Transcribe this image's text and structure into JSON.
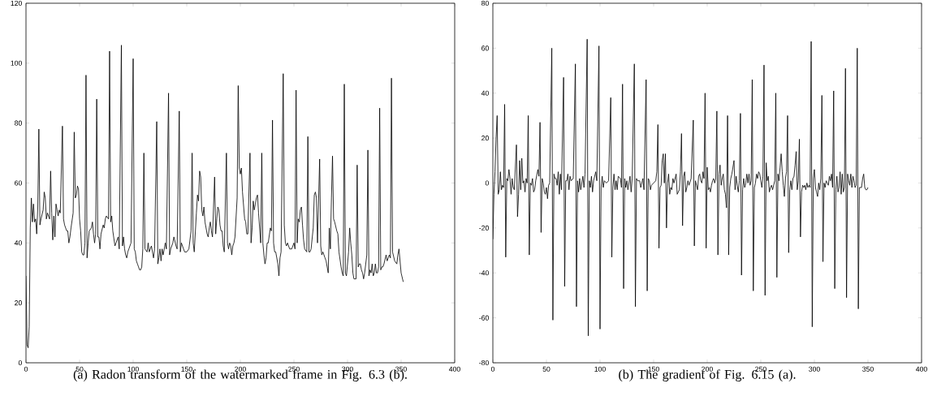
{
  "chart_data": [
    {
      "type": "line",
      "title": "(a) Radon transform of the watermarked frame in Fig. 6.3 (b).",
      "color": "#000000",
      "xlim": [
        0,
        400
      ],
      "ylim": [
        0,
        120
      ],
      "xticks": [
        0,
        50,
        100,
        150,
        200,
        250,
        300,
        350,
        400
      ],
      "yticks": [
        0,
        20,
        40,
        60,
        80,
        100,
        120
      ],
      "x": [
        0,
        1,
        2,
        3,
        4,
        5,
        6,
        7,
        8,
        9,
        10,
        11,
        12,
        13,
        14,
        16,
        17,
        18,
        19,
        20,
        22,
        23,
        24,
        25,
        26,
        27,
        28,
        29,
        30,
        31,
        32,
        34,
        35,
        36,
        38,
        39,
        40,
        41,
        42,
        44,
        45,
        46,
        47,
        48,
        49,
        50,
        51,
        52,
        53,
        54,
        55,
        56,
        57,
        58,
        59,
        61,
        62,
        63,
        64,
        65,
        66,
        67,
        68,
        69,
        70,
        72,
        73,
        74,
        75,
        77,
        78,
        79,
        80,
        81,
        83,
        84,
        86,
        87,
        89,
        90,
        91,
        92,
        93,
        94,
        95,
        96,
        97,
        98,
        100,
        101,
        102,
        103,
        104,
        105,
        106,
        107,
        108,
        109,
        110,
        111,
        113,
        114,
        115,
        116,
        117,
        119,
        120,
        122,
        123,
        124,
        125,
        126,
        127,
        128,
        130,
        131,
        133,
        134,
        135,
        137,
        138,
        140,
        141,
        143,
        144,
        145,
        146,
        148,
        150,
        152,
        154,
        155,
        156,
        157,
        159,
        160,
        161,
        162,
        163,
        164,
        165,
        166,
        167,
        168,
        169,
        170,
        171,
        172,
        173,
        174,
        176,
        177,
        178,
        179,
        180,
        181,
        182,
        183,
        184,
        185,
        187,
        188,
        189,
        190,
        191,
        192,
        193,
        194,
        195,
        197,
        198,
        199,
        200,
        201,
        202,
        204,
        205,
        206,
        207,
        209,
        210,
        211,
        212,
        213,
        214,
        215,
        216,
        217,
        219,
        220,
        221,
        222,
        223,
        224,
        225,
        226,
        228,
        229,
        230,
        231,
        232,
        233,
        235,
        236,
        237,
        238,
        240,
        241,
        242,
        243,
        244,
        246,
        248,
        250,
        251,
        252,
        253,
        254,
        255,
        256,
        257,
        258,
        259,
        260,
        262,
        263,
        264,
        265,
        266,
        268,
        269,
        270,
        271,
        272,
        274,
        275,
        276,
        277,
        279,
        280,
        282,
        283,
        284,
        285,
        286,
        287,
        288,
        290,
        291,
        292,
        294,
        295,
        296,
        297,
        298,
        299,
        301,
        302,
        303,
        304,
        305,
        306,
        307,
        308,
        309,
        310,
        311,
        312,
        313,
        314,
        315,
        316,
        318,
        319,
        320,
        321,
        322,
        323,
        324,
        325,
        326,
        327,
        328,
        329,
        330,
        331,
        332,
        333,
        334,
        336,
        337,
        338,
        339,
        340,
        341,
        342,
        344,
        346,
        347,
        348,
        350,
        352
      ],
      "values": [
        29,
        6,
        5,
        12,
        45,
        55,
        47,
        53,
        47,
        48,
        43,
        52,
        78,
        46,
        48,
        51,
        57,
        55,
        48,
        50,
        48,
        64,
        50,
        41,
        49,
        42,
        53,
        51,
        49,
        51,
        50,
        79,
        48,
        46,
        44,
        44,
        40,
        42,
        45,
        50,
        77,
        55,
        56,
        59,
        58,
        48,
        44,
        37,
        36,
        36,
        40,
        96,
        35,
        40,
        44,
        45,
        47,
        43,
        40,
        43,
        88,
        42,
        42,
        38,
        43,
        46,
        45,
        48,
        49,
        48,
        104,
        47,
        49,
        44,
        39,
        40,
        42,
        38,
        106,
        39,
        42,
        38,
        36,
        35,
        37,
        38,
        39,
        40,
        101.5,
        38,
        37,
        34,
        33,
        32,
        31,
        31,
        32,
        38,
        70,
        38,
        37,
        40,
        37,
        38,
        39,
        35,
        38,
        80.5,
        33,
        35,
        38,
        34,
        38,
        36,
        40,
        38,
        90,
        36,
        38,
        40,
        42,
        39,
        38,
        84,
        37,
        40,
        39,
        37,
        37,
        38,
        44,
        70,
        40,
        37,
        50,
        56,
        54,
        64,
        62,
        51,
        49,
        52,
        47,
        45,
        43,
        42,
        45,
        47,
        44,
        42,
        62,
        43,
        48,
        52,
        51,
        46,
        44,
        44,
        39,
        37,
        70,
        40,
        38,
        40,
        39,
        36,
        39,
        40,
        42,
        55,
        92.5,
        65,
        63,
        65,
        57,
        48,
        47,
        43,
        43,
        70,
        40,
        45,
        54,
        51,
        53,
        55,
        56,
        50,
        40,
        70,
        40,
        36,
        33,
        35,
        40,
        40,
        45,
        44,
        81,
        40,
        37,
        37,
        33,
        29,
        35,
        37,
        96.5,
        46,
        40,
        39,
        40,
        38,
        38,
        40,
        38,
        91,
        40,
        48,
        47,
        51,
        52,
        46,
        41,
        38,
        37,
        75.5,
        37,
        37,
        38,
        45,
        56,
        57,
        55,
        40,
        68,
        39,
        36,
        37,
        35,
        34,
        30,
        45,
        38,
        55,
        69,
        48,
        47,
        44,
        43,
        37,
        32,
        30,
        29,
        93,
        30,
        29,
        37,
        45,
        40,
        36,
        30,
        28,
        28,
        28,
        66,
        32,
        33,
        33,
        31,
        30,
        28,
        30,
        36,
        71,
        29,
        31,
        30,
        33,
        29,
        30,
        33,
        30,
        30,
        32,
        85,
        31,
        32,
        32,
        33,
        36,
        34,
        35,
        36,
        35,
        95,
        37,
        34,
        33,
        36,
        38,
        30,
        27
      ]
    },
    {
      "type": "line",
      "title": "(b) The gradient of Fig. 6.15 (a).",
      "color": "#000000",
      "xlim": [
        0,
        400
      ],
      "ylim": [
        -80,
        80
      ],
      "xticks": [
        0,
        50,
        100,
        150,
        200,
        250,
        300,
        350,
        400
      ],
      "yticks": [
        -80,
        -60,
        -40,
        -20,
        0,
        20,
        40,
        60,
        80
      ],
      "x": [
        0,
        1,
        2,
        3,
        4,
        5,
        6,
        7,
        8,
        9,
        10,
        11,
        12,
        13,
        14,
        15,
        16,
        17,
        18,
        19,
        20,
        22,
        23,
        24,
        25,
        26,
        27,
        28,
        29,
        30,
        31,
        32,
        33,
        34,
        35,
        36,
        37,
        38,
        39,
        40,
        42,
        43,
        44,
        45,
        46,
        47,
        48,
        49,
        50,
        51,
        52,
        53,
        55,
        56,
        57,
        58,
        59,
        60,
        61,
        62,
        63,
        64,
        66,
        67,
        68,
        69,
        70,
        71,
        72,
        73,
        75,
        77,
        78,
        79,
        80,
        81,
        82,
        84,
        85,
        86,
        88,
        89,
        90,
        91,
        92,
        93,
        94,
        96,
        97,
        99,
        100,
        101,
        102,
        103,
        104,
        106,
        108,
        110,
        111,
        112,
        113,
        114,
        115,
        116,
        117,
        119,
        120,
        121,
        122,
        123,
        124,
        125,
        126,
        128,
        129,
        130,
        132,
        133,
        134,
        135,
        137,
        138,
        140,
        141,
        143,
        144,
        145,
        146,
        147,
        148,
        150,
        152,
        153,
        154,
        155,
        156,
        157,
        158,
        159,
        160,
        161,
        162,
        163,
        164,
        165,
        166,
        167,
        168,
        169,
        171,
        172,
        174,
        175,
        176,
        177,
        178,
        179,
        180,
        181,
        182,
        183,
        185,
        187,
        188,
        189,
        190,
        191,
        192,
        193,
        194,
        195,
        196,
        197,
        198,
        199,
        200,
        201,
        202,
        203,
        204,
        205,
        206,
        207,
        208,
        209,
        210,
        211,
        212,
        213,
        214,
        215,
        216,
        217,
        218,
        219,
        220,
        221,
        222,
        223,
        224,
        225,
        226,
        227,
        228,
        229,
        230,
        231,
        232,
        233,
        234,
        235,
        236,
        237,
        238,
        239,
        240,
        241,
        242,
        243,
        244,
        245,
        246,
        247,
        248,
        249,
        250,
        251,
        252,
        253,
        254,
        255,
        256,
        257,
        258,
        259,
        260,
        261,
        263,
        264,
        265,
        266,
        267,
        268,
        269,
        270,
        271,
        272,
        273,
        274,
        275,
        276,
        277,
        278,
        279,
        280,
        281,
        282,
        283,
        284,
        285,
        286,
        287,
        288,
        289,
        290,
        291,
        292,
        293,
        294,
        295,
        296,
        297,
        298,
        299,
        300,
        301,
        302,
        303,
        304,
        305,
        306,
        307,
        308,
        309,
        310,
        311,
        312,
        313,
        314,
        315,
        316,
        317,
        318,
        319,
        320,
        321,
        322,
        323,
        324,
        325,
        326,
        327,
        328,
        329,
        330,
        331,
        332,
        333,
        334,
        335,
        336,
        337,
        338,
        339,
        340,
        341,
        342,
        343,
        344,
        345,
        346,
        347,
        348,
        349,
        350
      ],
      "values": [
        -25,
        -5,
        5,
        20,
        30,
        -5,
        -3,
        5,
        -3,
        -1,
        -2,
        35,
        -33,
        2,
        1,
        6,
        2,
        -5,
        2,
        -2,
        -3,
        17,
        -15,
        -5,
        10,
        -3,
        11,
        0,
        1,
        -4,
        2,
        0,
        30,
        -32,
        0,
        -1,
        2,
        -4,
        -3,
        1,
        6,
        3,
        27,
        -22,
        2,
        0,
        -4,
        -5,
        -2,
        -7,
        -1,
        0,
        60,
        -61,
        4,
        2,
        2,
        -1,
        5,
        -5,
        4,
        -3,
        47,
        -46,
        1,
        1,
        4,
        -3,
        3,
        1,
        2,
        53,
        -55,
        1,
        -4,
        2,
        -3,
        3,
        -2,
        4,
        64,
        -68,
        1,
        -2,
        3,
        -4,
        1,
        5,
        1,
        61,
        -65,
        -2,
        3,
        -2,
        1,
        0,
        1,
        38,
        -33,
        -2,
        4,
        -3,
        1,
        -3,
        3,
        2,
        -2,
        44,
        -47,
        2,
        -2,
        1,
        -3,
        3,
        -4,
        2,
        53,
        -55,
        2,
        1,
        1,
        -2,
        2,
        -3,
        46,
        -48,
        2,
        1,
        -3,
        -1,
        0,
        1,
        5,
        26,
        -29,
        -2,
        -1,
        10,
        13,
        0,
        13,
        -20,
        0,
        4,
        -5,
        -2,
        -3,
        2,
        0,
        4,
        -5,
        -3,
        5,
        22,
        -19,
        3,
        5,
        -4,
        -2,
        1,
        -1,
        2,
        28,
        -28,
        1,
        -1,
        -3,
        3,
        4,
        1,
        0,
        5,
        2,
        40,
        -29,
        7,
        -3,
        -2,
        -4,
        -1,
        1,
        2,
        0,
        2,
        32,
        -32,
        4,
        8,
        -1,
        2,
        4,
        -3,
        -5,
        -11,
        30,
        -32,
        -2,
        2,
        4,
        7,
        10,
        -3,
        3,
        -1,
        -4,
        1,
        31,
        -41,
        -3,
        2,
        -2,
        0,
        4,
        0,
        4,
        -1,
        1,
        46,
        -48,
        -2,
        0,
        4,
        2,
        5,
        4,
        1,
        -2,
        3,
        52.5,
        -50,
        9,
        1,
        3,
        -4,
        -2,
        -1,
        -3,
        1,
        40,
        -42,
        4,
        1,
        7,
        13,
        5,
        -1,
        -6,
        2,
        5,
        30,
        -31,
        -3,
        1,
        -3,
        2,
        3,
        8,
        14,
        -3,
        1,
        19.5,
        -24,
        -4,
        -1,
        -2,
        -1,
        -3,
        0,
        -2,
        -1,
        -2,
        63,
        -64,
        2,
        6,
        -2,
        -4,
        -6,
        0,
        -3,
        2,
        39,
        -35,
        0,
        -2,
        1,
        0,
        -1,
        3,
        1,
        4,
        -2,
        41,
        -47,
        -3,
        3,
        -4,
        -2,
        5,
        -5,
        4,
        -4,
        -2,
        51,
        -51,
        4,
        1,
        -1,
        4,
        -2,
        3,
        1,
        -2,
        -1,
        60,
        -56,
        -2,
        -2,
        -2,
        2,
        4,
        -2,
        -3,
        -3,
        -2
      ]
    }
  ]
}
